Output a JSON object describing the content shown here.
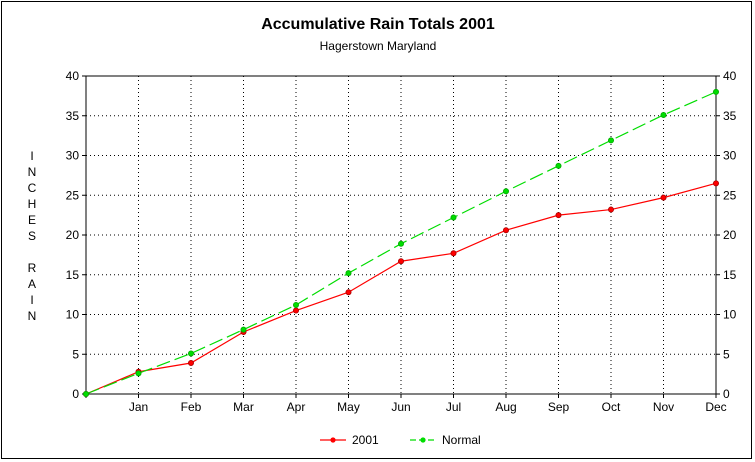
{
  "chart_data": {
    "type": "line",
    "title": "Accumulative Rain Totals 2001",
    "subtitle": "Hagerstown Maryland",
    "ylabel": "INCHES RAIN",
    "xlabel": "",
    "categories": [
      "",
      "Jan",
      "Feb",
      "Mar",
      "Apr",
      "May",
      "Jun",
      "Jul",
      "Aug",
      "Sep",
      "Oct",
      "Nov",
      "Dec"
    ],
    "ylim": [
      0,
      40
    ],
    "yticks": [
      0,
      5,
      10,
      15,
      20,
      25,
      30,
      35,
      40
    ],
    "grid": true,
    "legend_position": "bottom",
    "series": [
      {
        "name": "2001",
        "color": "#ff0000",
        "line_style": "solid",
        "values": [
          0,
          2.8,
          3.9,
          7.8,
          10.5,
          12.8,
          16.7,
          17.7,
          20.6,
          22.5,
          23.2,
          24.7,
          26.5
        ]
      },
      {
        "name": "Normal",
        "color": "#00dd00",
        "line_style": "dashed",
        "values": [
          0,
          2.6,
          5.1,
          8.1,
          11.2,
          15.2,
          18.9,
          22.2,
          25.5,
          28.7,
          31.9,
          35.1,
          38.0
        ]
      }
    ]
  }
}
